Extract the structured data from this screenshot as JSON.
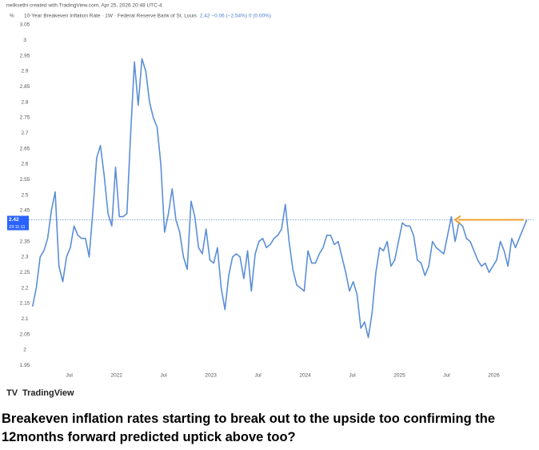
{
  "chart_data": {
    "type": "line",
    "attribution": "neilksethi created with TradingView.com, Apr 25, 2026 20:48 UTC-4",
    "y_unit": "%",
    "legend_title": "10-Year Breakeven Inflation Rate · 1W · Federal Reserve Bank of St. Louis",
    "legend_values": "2.42 −0.06 (−2.54%) 0 (0.00%)",
    "last_price": 2.42,
    "countdown": "23:11:11",
    "brand": "TradingView",
    "caption": "Breakeven inflation rates starting to break out to the upside too confirming the 12months forward predicted uptick above too?",
    "color": "#5b8fd6",
    "arrow_color": "#f0a030",
    "x": [
      2021.11,
      2021.15,
      2021.19,
      2021.23,
      2021.27,
      2021.31,
      2021.35,
      2021.39,
      2021.43,
      2021.47,
      2021.51,
      2021.55,
      2021.59,
      2021.63,
      2021.67,
      2021.71,
      2021.75,
      2021.79,
      2021.83,
      2021.87,
      2021.91,
      2021.95,
      2021.99,
      2022.03,
      2022.07,
      2022.11,
      2022.15,
      2022.19,
      2022.23,
      2022.27,
      2022.31,
      2022.35,
      2022.39,
      2022.43,
      2022.47,
      2022.51,
      2022.55,
      2022.59,
      2022.63,
      2022.67,
      2022.71,
      2022.75,
      2022.79,
      2022.83,
      2022.87,
      2022.91,
      2022.95,
      2022.99,
      2023.03,
      2023.07,
      2023.11,
      2023.15,
      2023.19,
      2023.23,
      2023.27,
      2023.31,
      2023.35,
      2023.39,
      2023.43,
      2023.47,
      2023.51,
      2023.55,
      2023.59,
      2023.63,
      2023.67,
      2023.71,
      2023.75,
      2023.79,
      2023.83,
      2023.87,
      2023.91,
      2023.95,
      2023.99,
      2024.03,
      2024.07,
      2024.11,
      2024.15,
      2024.19,
      2024.23,
      2024.27,
      2024.31,
      2024.35,
      2024.39,
      2024.43,
      2024.47,
      2024.51,
      2024.55,
      2024.59,
      2024.63,
      2024.67,
      2024.71,
      2024.75,
      2024.79,
      2024.83,
      2024.87,
      2024.91,
      2024.95,
      2024.99,
      2025.03,
      2025.07,
      2025.11,
      2025.15,
      2025.19,
      2025.23,
      2025.27,
      2025.31,
      2025.35,
      2025.39,
      2025.43,
      2025.47,
      2025.51,
      2025.55,
      2025.59,
      2025.63,
      2025.67,
      2025.71,
      2025.75,
      2025.79,
      2025.83,
      2025.87,
      2025.91,
      2025.95,
      2025.99,
      2026.03,
      2026.07,
      2026.11,
      2026.15,
      2026.19,
      2026.23,
      2026.27,
      2026.31,
      2026.35
    ],
    "values": [
      2.14,
      2.2,
      2.3,
      2.32,
      2.36,
      2.45,
      2.51,
      2.27,
      2.22,
      2.3,
      2.33,
      2.4,
      2.37,
      2.36,
      2.36,
      2.3,
      2.45,
      2.62,
      2.66,
      2.56,
      2.44,
      2.4,
      2.59,
      2.43,
      2.43,
      2.44,
      2.7,
      2.93,
      2.79,
      2.94,
      2.9,
      2.8,
      2.75,
      2.72,
      2.6,
      2.38,
      2.44,
      2.52,
      2.42,
      2.38,
      2.3,
      2.26,
      2.48,
      2.43,
      2.33,
      2.31,
      2.39,
      2.29,
      2.28,
      2.33,
      2.2,
      2.13,
      2.24,
      2.3,
      2.31,
      2.3,
      2.23,
      2.32,
      2.19,
      2.31,
      2.35,
      2.36,
      2.33,
      2.34,
      2.36,
      2.37,
      2.39,
      2.47,
      2.35,
      2.26,
      2.21,
      2.2,
      2.19,
      2.32,
      2.28,
      2.28,
      2.31,
      2.33,
      2.37,
      2.37,
      2.34,
      2.35,
      2.3,
      2.25,
      2.19,
      2.22,
      2.18,
      2.07,
      2.09,
      2.04,
      2.12,
      2.25,
      2.33,
      2.32,
      2.35,
      2.27,
      2.29,
      2.35,
      2.41,
      2.4,
      2.4,
      2.37,
      2.29,
      2.28,
      2.24,
      2.27,
      2.35,
      2.33,
      2.32,
      2.31,
      2.37,
      2.43,
      2.35,
      2.41,
      2.4,
      2.36,
      2.35,
      2.32,
      2.29,
      2.27,
      2.28,
      2.25,
      2.27,
      2.29,
      2.35,
      2.32,
      2.27,
      2.36,
      2.33,
      2.36,
      2.39,
      2.42
    ],
    "xlim": [
      2021.07,
      2026.42
    ],
    "xticks": [
      {
        "value": 2021.5,
        "label": "Jul"
      },
      2022,
      {
        "value": 2022.5,
        "label": "Jul"
      },
      2023,
      {
        "value": 2023.5,
        "label": "Jul"
      },
      2024,
      {
        "value": 2024.5,
        "label": "Jul"
      },
      2025,
      {
        "value": 2025.5,
        "label": "Jul"
      },
      2026
    ],
    "ylim": [
      1.93,
      3.06
    ],
    "yticks": [
      1.95,
      2,
      2.05,
      2.1,
      2.15,
      2.2,
      2.25,
      2.3,
      2.35,
      2.4,
      2.45,
      2.5,
      2.55,
      2.6,
      2.65,
      2.7,
      2.75,
      2.8,
      2.85,
      2.9,
      2.95,
      3,
      3.05
    ]
  }
}
